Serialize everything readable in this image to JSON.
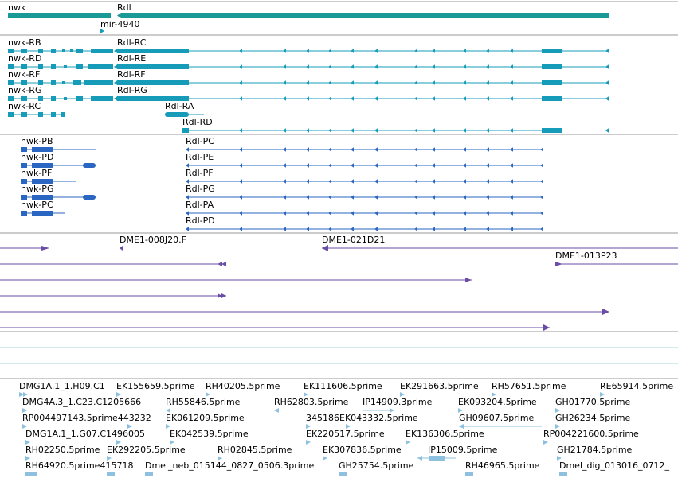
{
  "colors": {
    "gene": "#1a9a96",
    "mrna_top": "#169cb8",
    "protein": "#2a66c2",
    "clone": "#6a4da6",
    "est": "#8ec0df",
    "divider": "#9a9a9a",
    "track_line": "#a8d4df"
  },
  "genes": [
    {
      "name": "nwk"
    },
    {
      "name": "Rdl"
    },
    {
      "name": "mir-4940"
    }
  ],
  "transcripts": [
    {
      "name": "nwk-RB"
    },
    {
      "name": "nwk-RD"
    },
    {
      "name": "nwk-RF"
    },
    {
      "name": "nwk-RG"
    },
    {
      "name": "nwk-RC"
    },
    {
      "name": "Rdl-RC"
    },
    {
      "name": "Rdl-RE"
    },
    {
      "name": "Rdl-RF"
    },
    {
      "name": "Rdl-RG"
    },
    {
      "name": "Rdl-RA"
    },
    {
      "name": "Rdl-RD"
    }
  ],
  "proteins": [
    {
      "name": "nwk-PB"
    },
    {
      "name": "nwk-PD"
    },
    {
      "name": "nwk-PF"
    },
    {
      "name": "nwk-PG"
    },
    {
      "name": "nwk-PC"
    },
    {
      "name": "Rdl-PC"
    },
    {
      "name": "Rdl-PE"
    },
    {
      "name": "Rdl-PF"
    },
    {
      "name": "Rdl-PG"
    },
    {
      "name": "Rdl-PA"
    },
    {
      "name": "Rdl-PD"
    }
  ],
  "clones": [
    {
      "name": "DME1-008J20.F"
    },
    {
      "name": "DME1-021D21"
    },
    {
      "name": "DME1-013P23"
    }
  ],
  "ests": [
    {
      "name": "DMG1A.1_1.H09.C1"
    },
    {
      "name": "EK155659.5prime"
    },
    {
      "name": "RH40205.5prime"
    },
    {
      "name": "EK111606.5prime"
    },
    {
      "name": "EK291663.5prime"
    },
    {
      "name": "RH57651.5prime"
    },
    {
      "name": "RE65914.5prime"
    },
    {
      "name": "DMG4A.3_1.C23.C1205666"
    },
    {
      "name": "RH55846.5prime"
    },
    {
      "name": "RH62803.5prime"
    },
    {
      "name": "IP14909.3prime"
    },
    {
      "name": "EK093204.5prime"
    },
    {
      "name": "GH01770.5prime"
    },
    {
      "name": "RP004497143.5prime443232"
    },
    {
      "name": "EK061209.5prime"
    },
    {
      "name": "345186EK043332.5prime"
    },
    {
      "name": "GH09607.5prime"
    },
    {
      "name": "GH26234.5prime"
    },
    {
      "name": "DMG1A.1_1.G07.C1496005"
    },
    {
      "name": "EK042539.5prime"
    },
    {
      "name": "EK220517.5prime"
    },
    {
      "name": "EK136306.5prime"
    },
    {
      "name": "RP004221600.5prime"
    },
    {
      "name": "RH02250.5prime"
    },
    {
      "name": "EK292205.5prime"
    },
    {
      "name": "RH02845.5prime"
    },
    {
      "name": "EK307836.5prime"
    },
    {
      "name": "IP15009.5prime"
    },
    {
      "name": "GH21784.5prime"
    },
    {
      "name": "RH64920.5prime415718"
    },
    {
      "name": "Dmel_neb_015144_0827_0506.3prime"
    },
    {
      "name": "GH25754.5prime"
    },
    {
      "name": "RH46965.5prime"
    },
    {
      "name": "Dmel_dig_013016_0712_"
    }
  ]
}
